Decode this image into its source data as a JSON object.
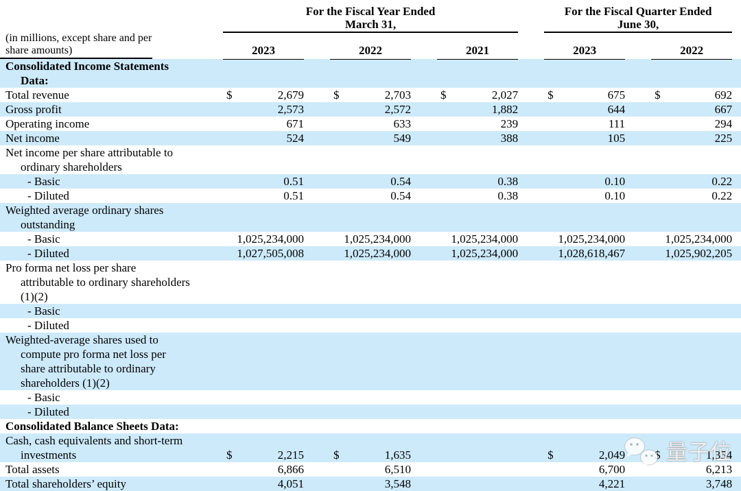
{
  "page": {
    "background_color": "#ffffff",
    "shaded_row_color": "#cdeafb",
    "text_color": "#000000"
  },
  "table": {
    "note": "(in millions, except share and per\nshare amounts)",
    "column_groups": [
      {
        "title": "For the Fiscal Year Ended\nMarch 31,",
        "years": [
          "2023",
          "2022",
          "2021"
        ]
      },
      {
        "title": "For the Fiscal Quarter Ended\nJune 30,",
        "years": [
          "2023",
          "2022"
        ]
      }
    ],
    "rows": [
      {
        "label": "Consolidated Income Statements\nData:",
        "bold": true,
        "sub": false,
        "shaded": true,
        "dollar": false,
        "values": [
          "",
          "",
          "",
          "",
          ""
        ]
      },
      {
        "label": "Total revenue",
        "bold": false,
        "sub": false,
        "shaded": false,
        "dollar": true,
        "values": [
          "2,679",
          "2,703",
          "2,027",
          "675",
          "692"
        ]
      },
      {
        "label": "Gross profit",
        "bold": false,
        "sub": false,
        "shaded": true,
        "dollar": false,
        "values": [
          "2,573",
          "2,572",
          "1,882",
          "644",
          "667"
        ]
      },
      {
        "label": "Operating income",
        "bold": false,
        "sub": false,
        "shaded": false,
        "dollar": false,
        "values": [
          "671",
          "633",
          "239",
          "111",
          "294"
        ]
      },
      {
        "label": "Net income",
        "bold": false,
        "sub": false,
        "shaded": true,
        "dollar": false,
        "values": [
          "524",
          "549",
          "388",
          "105",
          "225"
        ]
      },
      {
        "label": "Net income per share attributable to\nordinary shareholders",
        "bold": false,
        "sub": false,
        "shaded": false,
        "dollar": false,
        "values": [
          "",
          "",
          "",
          "",
          ""
        ]
      },
      {
        "label": "- Basic",
        "bold": false,
        "sub": true,
        "shaded": true,
        "dollar": false,
        "values": [
          "0.51",
          "0.54",
          "0.38",
          "0.10",
          "0.22"
        ]
      },
      {
        "label": "- Diluted",
        "bold": false,
        "sub": true,
        "shaded": false,
        "dollar": false,
        "values": [
          "0.51",
          "0.54",
          "0.38",
          "0.10",
          "0.22"
        ]
      },
      {
        "label": "Weighted average ordinary shares\noutstanding",
        "bold": false,
        "sub": false,
        "shaded": true,
        "dollar": false,
        "values": [
          "",
          "",
          "",
          "",
          ""
        ]
      },
      {
        "label": "- Basic",
        "bold": false,
        "sub": true,
        "shaded": false,
        "dollar": false,
        "values": [
          "1,025,234,000",
          "1,025,234,000",
          "1,025,234,000",
          "1,025,234,000",
          "1,025,234,000"
        ]
      },
      {
        "label": "- Diluted",
        "bold": false,
        "sub": true,
        "shaded": true,
        "dollar": false,
        "values": [
          "1,027,505,008",
          "1,025,234,000",
          "1,025,234,000",
          "1,028,618,467",
          "1,025,902,205"
        ]
      },
      {
        "label": "Pro forma net loss per share\nattributable to ordinary shareholders\n(1)(2)",
        "bold": false,
        "sub": false,
        "shaded": false,
        "dollar": false,
        "values": [
          "",
          "",
          "",
          "",
          ""
        ]
      },
      {
        "label": "- Basic",
        "bold": false,
        "sub": true,
        "shaded": true,
        "dollar": false,
        "values": [
          "",
          "",
          "",
          "",
          ""
        ]
      },
      {
        "label": "- Diluted",
        "bold": false,
        "sub": true,
        "shaded": false,
        "dollar": false,
        "values": [
          "",
          "",
          "",
          "",
          ""
        ]
      },
      {
        "label": "Weighted-average shares used to\ncompute pro forma net loss per\nshare attributable to ordinary\nshareholders (1)(2)",
        "bold": false,
        "sub": false,
        "shaded": true,
        "dollar": false,
        "values": [
          "",
          "",
          "",
          "",
          ""
        ]
      },
      {
        "label": "- Basic",
        "bold": false,
        "sub": true,
        "shaded": false,
        "dollar": false,
        "values": [
          "",
          "",
          "",
          "",
          ""
        ]
      },
      {
        "label": "- Diluted",
        "bold": false,
        "sub": true,
        "shaded": true,
        "dollar": false,
        "values": [
          "",
          "",
          "",
          "",
          ""
        ]
      },
      {
        "label": "Consolidated Balance Sheets Data:",
        "bold": true,
        "sub": false,
        "shaded": false,
        "dollar": false,
        "values": [
          "",
          "",
          "",
          "",
          ""
        ]
      },
      {
        "label": "Cash, cash equivalents and short-term\ninvestments",
        "bold": false,
        "sub": false,
        "shaded": true,
        "dollar": true,
        "values": [
          "2,215",
          "1,635",
          "",
          "2,049",
          "1,354"
        ]
      },
      {
        "label": "Total assets",
        "bold": false,
        "sub": false,
        "shaded": false,
        "dollar": false,
        "values": [
          "6,866",
          "6,510",
          "",
          "6,700",
          "6,213"
        ]
      },
      {
        "label": "Total shareholders’ equity",
        "bold": false,
        "sub": false,
        "shaded": true,
        "dollar": false,
        "values": [
          "4,051",
          "3,548",
          "",
          "4,221",
          "3,748"
        ]
      }
    ]
  },
  "watermark": {
    "text": "量子位",
    "icon": "wechat-logo"
  }
}
